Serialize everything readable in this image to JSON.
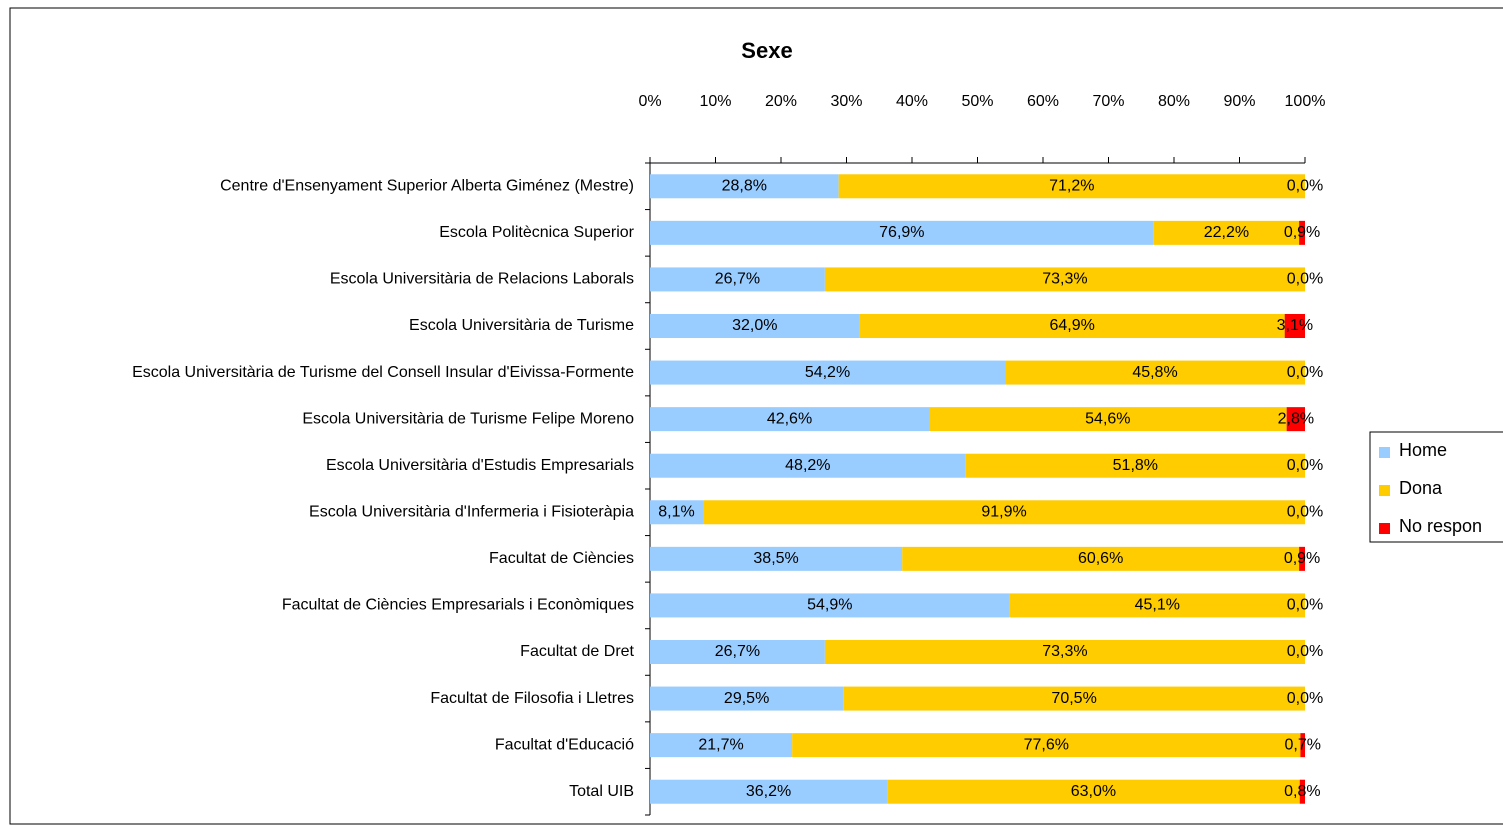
{
  "chart_data": {
    "type": "stacked-bar-horizontal",
    "title": "Sexe",
    "categories": [
      "Centre d'Ensenyament Superior Alberta Giménez (Mestre)",
      "Escola Politècnica Superior",
      "Escola Universitària de Relacions Laborals",
      "Escola Universitària de Turisme",
      "Escola Universitària de Turisme del Consell Insular d'Eivissa-Formente",
      "Escola Universitària de Turisme Felipe Moreno",
      "Escola Universitària d'Estudis Empresarials",
      "Escola Universitària d'Infermeria i Fisioteràpia",
      "Facultat de Ciències",
      "Facultat de Ciències Empresarials i Econòmiques",
      "Facultat de Dret",
      "Facultat de Filosofia i Lletres",
      "Facultat d'Educació",
      "Total UIB"
    ],
    "series": [
      {
        "name": "Home",
        "color": "#99ccff",
        "values": [
          28.8,
          76.9,
          26.7,
          32.0,
          54.2,
          42.6,
          48.2,
          8.1,
          38.5,
          54.9,
          26.7,
          29.5,
          21.7,
          36.2
        ],
        "value_labels": [
          "28,8%",
          "76,9%",
          "26,7%",
          "32,0%",
          "54,2%",
          "42,6%",
          "48,2%",
          "8,1%",
          "38,5%",
          "54,9%",
          "26,7%",
          "29,5%",
          "21,7%",
          "36,2%"
        ]
      },
      {
        "name": "Dona",
        "color": "#ffcc00",
        "values": [
          71.2,
          22.2,
          73.3,
          64.9,
          45.8,
          54.6,
          51.8,
          91.9,
          60.6,
          45.1,
          73.3,
          70.5,
          77.6,
          63.0
        ],
        "value_labels": [
          "71,2%",
          "22,2%",
          "73,3%",
          "64,9%",
          "45,8%",
          "54,6%",
          "51,8%",
          "91,9%",
          "60,6%",
          "45,1%",
          "73,3%",
          "70,5%",
          "77,6%",
          "63,0%"
        ]
      },
      {
        "name": "No respon",
        "color": "#ff0000",
        "values": [
          0.0,
          0.9,
          0.0,
          3.1,
          0.0,
          2.8,
          0.0,
          0.0,
          0.9,
          0.0,
          0.0,
          0.0,
          0.7,
          0.8
        ],
        "value_labels": [
          "0,0%",
          "0,9%",
          "0,0%",
          "3,1%",
          "0,0%",
          "2,8%",
          "0,0%",
          "0,0%",
          "0,9%",
          "0,0%",
          "0,0%",
          "0,0%",
          "0,7%",
          "0,8%"
        ]
      }
    ],
    "xlim": [
      0,
      100
    ],
    "xticks": [
      {
        "value": 0,
        "label": "0%"
      },
      {
        "value": 10,
        "label": "10%"
      },
      {
        "value": 20,
        "label": "20%"
      },
      {
        "value": 30,
        "label": "30%"
      },
      {
        "value": 40,
        "label": "40%"
      },
      {
        "value": 50,
        "label": "50%"
      },
      {
        "value": 60,
        "label": "60%"
      },
      {
        "value": 70,
        "label": "70%"
      },
      {
        "value": 80,
        "label": "80%"
      },
      {
        "value": 90,
        "label": "90%"
      },
      {
        "value": 100,
        "label": "100%"
      }
    ],
    "grid": false,
    "legend": "right"
  }
}
